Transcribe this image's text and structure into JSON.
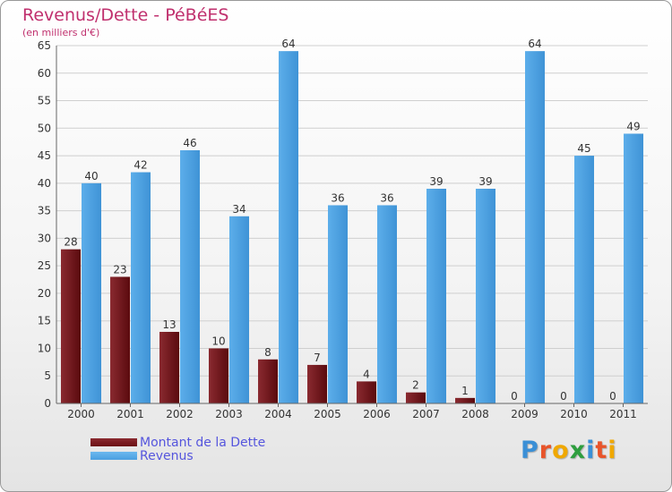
{
  "chart_data": {
    "type": "bar",
    "title": "Revenus/Dette - PéBéES",
    "subtitle": "(en milliers d'€)",
    "xlabel": "",
    "ylabel": "",
    "ylim": [
      0,
      65
    ],
    "ytick_step": 5,
    "grid": true,
    "legend_position": "bottom-left",
    "categories": [
      "2000",
      "2001",
      "2002",
      "2003",
      "2004",
      "2005",
      "2006",
      "2007",
      "2008",
      "2009",
      "2010",
      "2011"
    ],
    "series": [
      {
        "name": "Montant de la Dette",
        "color": "#6b0f14",
        "values": [
          28,
          23,
          13,
          10,
          8,
          7,
          4,
          2,
          1,
          0,
          0,
          0
        ]
      },
      {
        "name": "Revenus",
        "color": "#4a9fe0",
        "values": [
          40,
          42,
          46,
          34,
          64,
          36,
          36,
          39,
          39,
          64,
          45,
          49
        ]
      }
    ]
  },
  "logo": {
    "text": "Proxiti",
    "letter_colors": [
      "#3a8fd6",
      "#e8542a",
      "#f0a800",
      "#2e9e3e",
      "#3a8fd6",
      "#e8542a",
      "#f0a800"
    ]
  }
}
